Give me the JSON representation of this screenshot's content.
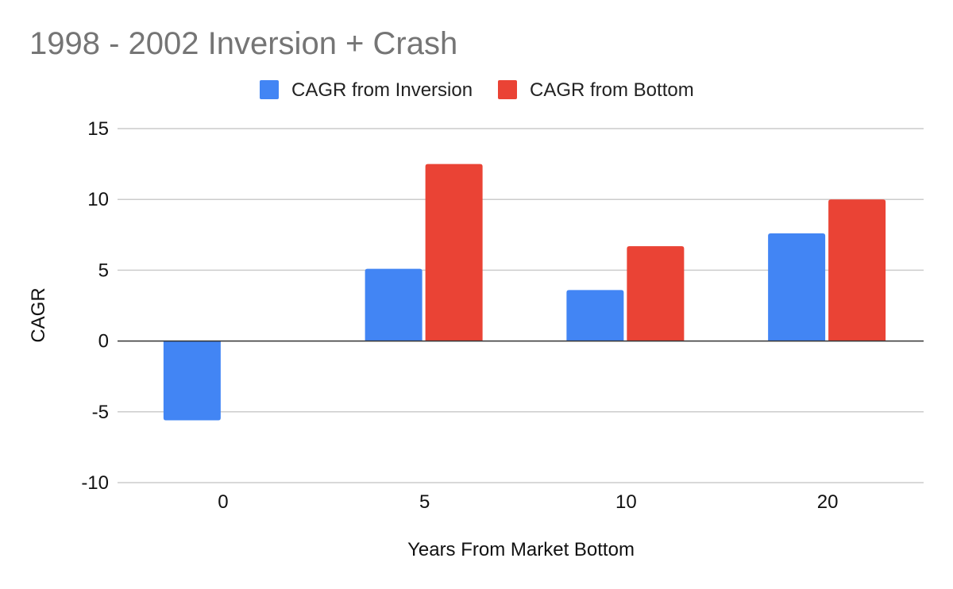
{
  "chart_data": {
    "type": "bar",
    "title": "1998 - 2002 Inversion + Crash",
    "xlabel": "Years From Market Bottom",
    "ylabel": "CAGR",
    "categories": [
      "0",
      "5",
      "10",
      "20"
    ],
    "series": [
      {
        "name": "CAGR from Inversion",
        "color": "#4285f4",
        "values": [
          -5.6,
          5.1,
          3.6,
          7.6
        ]
      },
      {
        "name": "CAGR from Bottom",
        "color": "#ea4335",
        "values": [
          0,
          12.5,
          6.7,
          10.0
        ]
      }
    ],
    "ylim": [
      -10,
      15
    ],
    "yticks": [
      "15",
      "10",
      "5",
      "0",
      "-5",
      "-10"
    ],
    "grid": true,
    "legend_position": "top"
  }
}
